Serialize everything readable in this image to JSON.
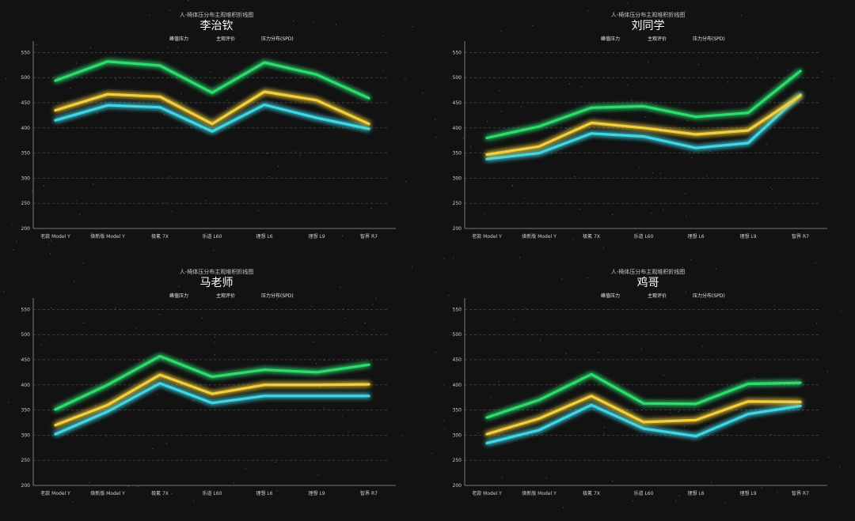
{
  "page": {
    "background": "#121212"
  },
  "chart_data": [
    {
      "type": "line",
      "title": "人-椅体压分布主观堆积折线图",
      "subtitle": "李治钦",
      "categories": [
        "老款 Model Y",
        "焕新版 Model Y",
        "极氪 7X",
        "乐道 L60",
        "理想 L6",
        "理想 L9",
        "智界 R7"
      ],
      "ylim": [
        200,
        560
      ],
      "yticks": [
        200,
        250,
        300,
        350,
        400,
        450,
        500,
        550
      ],
      "grid": true,
      "legend_position": "top-center",
      "series": [
        {
          "name": "峰值压力",
          "color": "#3fd6e6",
          "values": [
            415,
            445,
            441,
            393,
            446,
            420,
            398
          ]
        },
        {
          "name": "主观评价",
          "color": "#f3cf3c",
          "values": [
            435,
            467,
            462,
            408,
            472,
            455,
            408
          ]
        },
        {
          "name": "压力分布(SPD)",
          "color": "#2edc6e",
          "values": [
            494,
            532,
            524,
            470,
            530,
            506,
            459
          ]
        }
      ]
    },
    {
      "type": "line",
      "title": "人-椅体压分布主观堆积折线图",
      "subtitle": "刘同学",
      "categories": [
        "老款 Model Y",
        "焕新版 Model Y",
        "极氪 7X",
        "乐道 L60",
        "理想 L6",
        "理想 L9",
        "智界 R7"
      ],
      "ylim": [
        200,
        560
      ],
      "yticks": [
        200,
        250,
        300,
        350,
        400,
        450,
        500,
        550
      ],
      "grid": true,
      "legend_position": "top-center",
      "series": [
        {
          "name": "峰值压力",
          "color": "#3fd6e6",
          "values": [
            338,
            350,
            389,
            383,
            360,
            370,
            466
          ]
        },
        {
          "name": "主观评价",
          "color": "#f3cf3c",
          "values": [
            347,
            363,
            410,
            400,
            387,
            395,
            464
          ]
        },
        {
          "name": "压力分布(SPD)",
          "color": "#2edc6e",
          "values": [
            380,
            403,
            440,
            443,
            422,
            430,
            513
          ]
        }
      ]
    },
    {
      "type": "line",
      "title": "人-椅体压分布主观堆积折线图",
      "subtitle": "马老师",
      "categories": [
        "老款 Model Y",
        "焕新版 Model Y",
        "极氪 7X",
        "乐道 L60",
        "理想 L6",
        "理想 L9",
        "智界 R7"
      ],
      "ylim": [
        200,
        560
      ],
      "yticks": [
        200,
        250,
        300,
        350,
        400,
        450,
        500,
        550
      ],
      "grid": true,
      "legend_position": "top-center",
      "series": [
        {
          "name": "峰值压力",
          "color": "#3fd6e6",
          "values": [
            302,
            347,
            403,
            364,
            378,
            378,
            378
          ]
        },
        {
          "name": "主观评价",
          "color": "#f3cf3c",
          "values": [
            320,
            360,
            420,
            382,
            400,
            400,
            401
          ]
        },
        {
          "name": "压力分布(SPD)",
          "color": "#2edc6e",
          "values": [
            351,
            400,
            457,
            416,
            430,
            425,
            440
          ]
        }
      ]
    },
    {
      "type": "line",
      "title": "人-椅体压分布主观堆积折线图",
      "subtitle": "鸡哥",
      "categories": [
        "老款 Model Y",
        "焕新版 Model Y",
        "极氪 7X",
        "乐道 L60",
        "理想 L6",
        "理想 L9",
        "智界 R7"
      ],
      "ylim": [
        200,
        560
      ],
      "yticks": [
        200,
        250,
        300,
        350,
        400,
        450,
        500,
        550
      ],
      "grid": true,
      "legend_position": "top-center",
      "series": [
        {
          "name": "峰值压力",
          "color": "#3fd6e6",
          "values": [
            284,
            310,
            360,
            313,
            298,
            342,
            358
          ]
        },
        {
          "name": "主观评价",
          "color": "#f3cf3c",
          "values": [
            302,
            333,
            378,
            326,
            330,
            367,
            366
          ]
        },
        {
          "name": "压力分布(SPD)",
          "color": "#2edc6e",
          "values": [
            335,
            370,
            421,
            363,
            362,
            402,
            404
          ]
        }
      ]
    }
  ]
}
